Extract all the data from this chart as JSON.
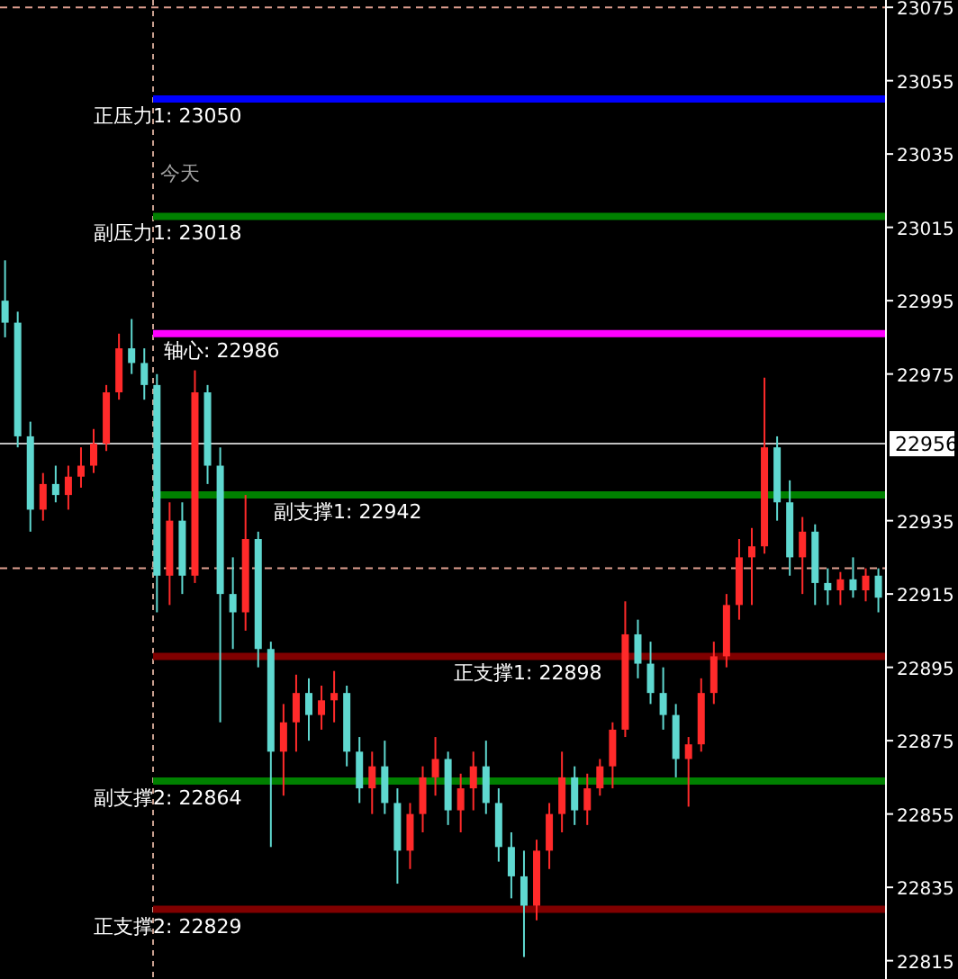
{
  "chart_data": {
    "type": "candlestick",
    "categories": [
      null,
      null,
      null,
      null,
      null,
      null,
      null,
      null,
      null,
      null,
      null,
      null,
      null,
      null,
      null,
      null,
      null,
      null,
      null,
      null,
      null,
      null,
      null,
      null,
      null,
      null,
      null,
      null,
      null,
      null,
      null,
      null,
      null,
      null,
      null,
      null,
      null,
      null,
      null,
      null,
      null,
      null,
      null,
      null,
      null,
      null,
      null,
      null,
      null,
      null,
      null,
      null,
      null,
      null,
      null,
      null,
      null,
      null,
      null,
      null,
      null,
      null,
      null,
      null,
      null,
      null,
      null,
      null,
      null,
      null
    ],
    "ohlc": [
      [
        22995,
        23006,
        22985,
        22989
      ],
      [
        22989,
        22992,
        22955,
        22958
      ],
      [
        22958,
        22962,
        22932,
        22938
      ],
      [
        22938,
        22948,
        22935,
        22945
      ],
      [
        22945,
        22950,
        22940,
        22942
      ],
      [
        22942,
        22950,
        22938,
        22947
      ],
      [
        22947,
        22955,
        22944,
        22950
      ],
      [
        22950,
        22960,
        22948,
        22956
      ],
      [
        22956,
        22972,
        22954,
        22970
      ],
      [
        22970,
        22986,
        22968,
        22982
      ],
      [
        22982,
        22990,
        22975,
        22978
      ],
      [
        22978,
        22982,
        22968,
        22972
      ],
      [
        22972,
        22975,
        22910,
        22920
      ],
      [
        22920,
        22940,
        22912,
        22935
      ],
      [
        22935,
        22940,
        22915,
        22920
      ],
      [
        22920,
        22976,
        22918,
        22970
      ],
      [
        22970,
        22972,
        22945,
        22950
      ],
      [
        22950,
        22955,
        22880,
        22915
      ],
      [
        22915,
        22925,
        22900,
        22910
      ],
      [
        22910,
        22942,
        22905,
        22930
      ],
      [
        22930,
        22932,
        22895,
        22900
      ],
      [
        22900,
        22902,
        22846,
        22872
      ],
      [
        22872,
        22885,
        22860,
        22880
      ],
      [
        22880,
        22893,
        22872,
        22888
      ],
      [
        22888,
        22892,
        22875,
        22882
      ],
      [
        22882,
        22890,
        22878,
        22886
      ],
      [
        22886,
        22894,
        22880,
        22888
      ],
      [
        22888,
        22890,
        22868,
        22872
      ],
      [
        22872,
        22876,
        22858,
        22862
      ],
      [
        22862,
        22872,
        22855,
        22868
      ],
      [
        22868,
        22875,
        22855,
        22858
      ],
      [
        22858,
        22862,
        22836,
        22845
      ],
      [
        22845,
        22858,
        22840,
        22855
      ],
      [
        22855,
        22868,
        22850,
        22865
      ],
      [
        22865,
        22876,
        22860,
        22870
      ],
      [
        22870,
        22872,
        22852,
        22856
      ],
      [
        22856,
        22866,
        22850,
        22862
      ],
      [
        22862,
        22872,
        22856,
        22868
      ],
      [
        22868,
        22875,
        22855,
        22858
      ],
      [
        22858,
        22862,
        22842,
        22846
      ],
      [
        22846,
        22850,
        22832,
        22838
      ],
      [
        22838,
        22845,
        22816,
        22830
      ],
      [
        22830,
        22848,
        22826,
        22845
      ],
      [
        22845,
        22858,
        22840,
        22855
      ],
      [
        22855,
        22872,
        22850,
        22865
      ],
      [
        22865,
        22868,
        22852,
        22856
      ],
      [
        22856,
        22866,
        22852,
        22862
      ],
      [
        22862,
        22870,
        22860,
        22868
      ],
      [
        22868,
        22880,
        22862,
        22878
      ],
      [
        22878,
        22913,
        22876,
        22904
      ],
      [
        22904,
        22908,
        22892,
        22896
      ],
      [
        22896,
        22902,
        22885,
        22888
      ],
      [
        22888,
        22895,
        22878,
        22882
      ],
      [
        22882,
        22885,
        22865,
        22870
      ],
      [
        22870,
        22876,
        22857,
        22874
      ],
      [
        22874,
        22892,
        22872,
        22888
      ],
      [
        22888,
        22902,
        22885,
        22898
      ],
      [
        22898,
        22915,
        22895,
        22912
      ],
      [
        22912,
        22930,
        22908,
        22925
      ],
      [
        22925,
        22933,
        22912,
        22928
      ],
      [
        22928,
        22974,
        22926,
        22955
      ],
      [
        22955,
        22958,
        22935,
        22940
      ],
      [
        22940,
        22946,
        22920,
        22925
      ],
      [
        22925,
        22936,
        22915,
        22932
      ],
      [
        22932,
        22934,
        22912,
        22918
      ],
      [
        22918,
        22922,
        22912,
        22916
      ],
      [
        22916,
        22921,
        22912,
        22919
      ],
      [
        22919,
        22925,
        22914,
        22916
      ],
      [
        22916,
        22922,
        22913,
        22920
      ],
      [
        22920,
        22922,
        22910,
        22914
      ]
    ],
    "ylim": [
      22810,
      23077
    ],
    "yticks": [
      23075,
      23055,
      23035,
      23015,
      22995,
      22975,
      22935,
      22915,
      22895,
      22875,
      22855,
      22835,
      22815
    ],
    "ref_lines": [
      {
        "axis": "y",
        "value": 23050,
        "label": "正压力1: 23050",
        "color": "#0000ff"
      },
      {
        "axis": "y",
        "value": 23018,
        "label": "副压力1: 23018",
        "color": "#008000"
      },
      {
        "axis": "y",
        "value": 22986,
        "label": "轴心: 22986",
        "color": "#ff00ff"
      },
      {
        "axis": "y",
        "value": 22942,
        "label": "副支撑1: 22942",
        "color": "#008000"
      },
      {
        "axis": "y",
        "value": 22898,
        "label": "正支撑1: 22898",
        "color": "#800000"
      },
      {
        "axis": "y",
        "value": 22864,
        "label": "副支撑2: 22864",
        "color": "#008000"
      },
      {
        "axis": "y",
        "value": 22829,
        "label": "正支撑2: 22829",
        "color": "#800000"
      },
      {
        "axis": "y",
        "value": 22956,
        "label": "22956",
        "color": "#c0c0c0",
        "line_style": "solid"
      },
      {
        "axis": "y",
        "value": 22922,
        "label": null,
        "color": "#e0a090",
        "line_style": "dashed"
      },
      {
        "axis": "y",
        "value": 23075,
        "label": null,
        "color": "#e0a090",
        "line_style": "dashed"
      }
    ],
    "annotations": [
      "今天"
    ]
  }
}
